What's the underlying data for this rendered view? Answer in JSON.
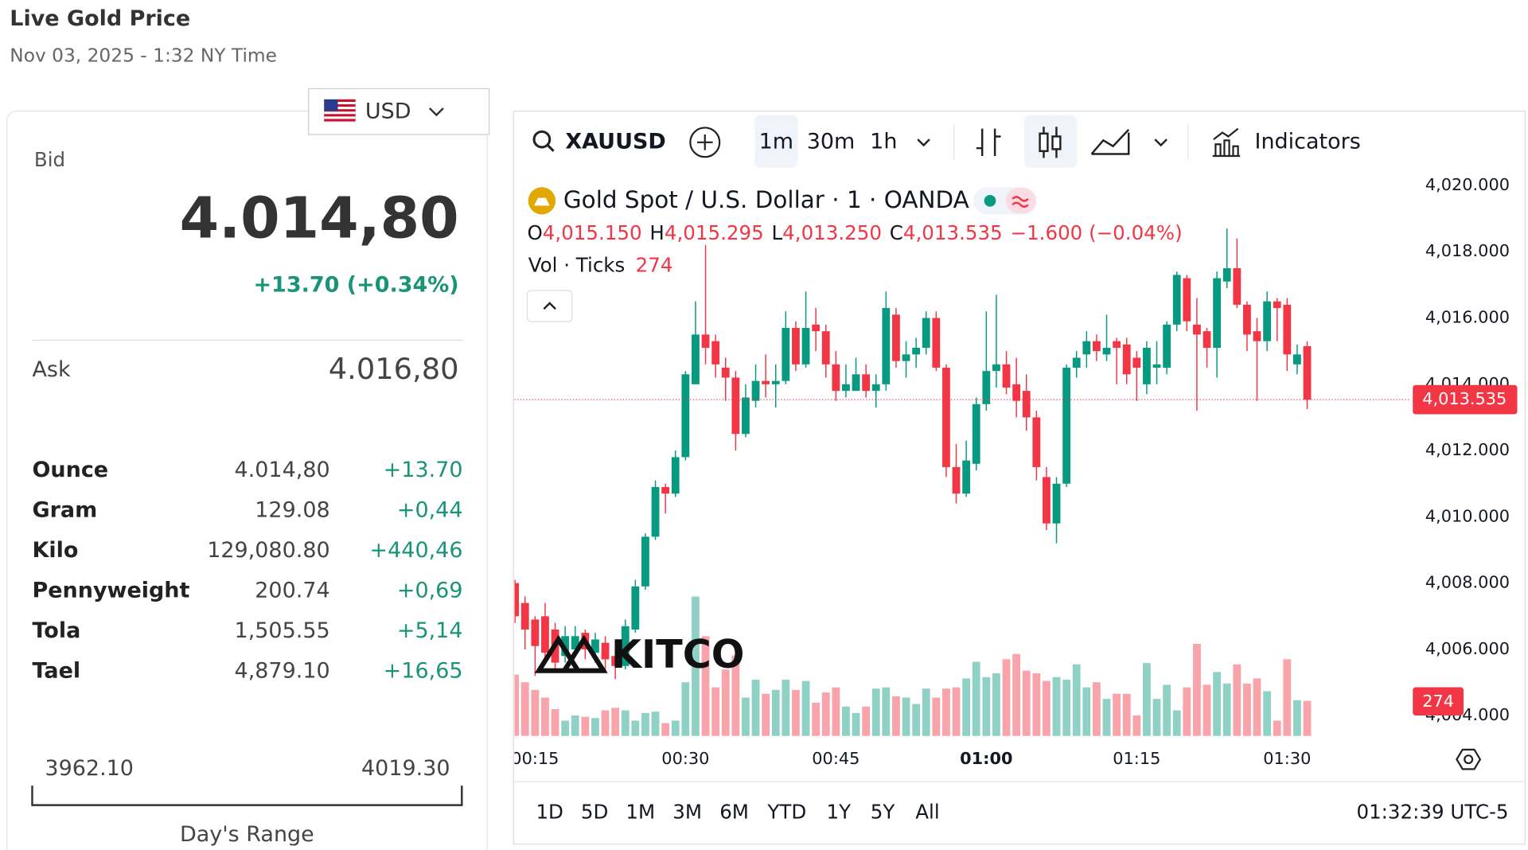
{
  "header": {
    "title": "Live Gold Price",
    "subtitle": "Nov 03, 2025 - 1:32 NY Time"
  },
  "currency": "USD",
  "bid": {
    "label": "Bid",
    "price": "4.014,80",
    "change": "+13.70 (+0.34%)"
  },
  "ask": {
    "label": "Ask",
    "price": "4.016,80"
  },
  "units": [
    {
      "name": "Ounce",
      "price": "4.014,80",
      "change": "+13.70"
    },
    {
      "name": "Gram",
      "price": "129.08",
      "change": "+0,44"
    },
    {
      "name": "Kilo",
      "price": "129,080.80",
      "change": "+440,46"
    },
    {
      "name": "Pennyweight",
      "price": "200.74",
      "change": "+0,69"
    },
    {
      "name": "Tola",
      "price": "1,505.55",
      "change": "+5,14"
    },
    {
      "name": "Tael",
      "price": "4,879.10",
      "change": "+16,65"
    }
  ],
  "range": {
    "low": "3962.10",
    "high": "4019.30",
    "label": "Day's Range"
  },
  "toolbar": {
    "symbol": "XAUUSD",
    "intervals": [
      "1m",
      "30m",
      "1h"
    ],
    "indicators": "Indicators"
  },
  "chart_data": {
    "type": "candlestick",
    "title": "Gold Spot / U.S. Dollar · 1 · OANDA",
    "ohlc": [
      {
        "key": "O",
        "value": "4,015.150"
      },
      {
        "key": "H",
        "value": "4,015.295"
      },
      {
        "key": "L",
        "value": "4,013.250"
      },
      {
        "key": "C",
        "value": "4,013.535"
      }
    ],
    "change": "−1.600 (−0.04%)",
    "volume_title": "Vol · Ticks",
    "volume_label": "274",
    "last_price_label": "4,013.535",
    "watermark": "KITCO",
    "up_color": "#089981",
    "down_color": "#f23645",
    "x": [
      "00:13",
      "00:14",
      "00:15",
      "00:16",
      "00:17",
      "00:18",
      "00:19",
      "00:20",
      "00:21",
      "00:22",
      "00:23",
      "00:24",
      "00:25",
      "00:26",
      "00:27",
      "00:28",
      "00:29",
      "00:30",
      "00:31",
      "00:32",
      "00:33",
      "00:34",
      "00:35",
      "00:36",
      "00:37",
      "00:38",
      "00:39",
      "00:40",
      "00:41",
      "00:42",
      "00:43",
      "00:44",
      "00:45",
      "00:46",
      "00:47",
      "00:48",
      "00:49",
      "00:50",
      "00:51",
      "00:52",
      "00:53",
      "00:54",
      "00:55",
      "00:56",
      "00:57",
      "00:58",
      "00:59",
      "01:00",
      "01:01",
      "01:02",
      "01:03",
      "01:04",
      "01:05",
      "01:06",
      "01:07",
      "01:08",
      "01:09",
      "01:10",
      "01:11",
      "01:12",
      "01:13",
      "01:14",
      "01:15",
      "01:16",
      "01:17",
      "01:18",
      "01:19",
      "01:20",
      "01:21",
      "01:22",
      "01:23",
      "01:24",
      "01:25",
      "01:26",
      "01:27",
      "01:28",
      "01:29",
      "01:30",
      "01:31",
      "01:32"
    ],
    "open": [
      4008.0,
      4007.4,
      4006.9,
      4007.0,
      4006.6,
      4005.8,
      4006.0,
      4006.5,
      4005.9,
      4006.2,
      4005.8,
      4005.5,
      4006.6,
      4007.9,
      4009.4,
      4010.9,
      4010.7,
      4011.8,
      4014.0,
      4015.5,
      4015.3,
      4014.5,
      4014.2,
      4012.5,
      4013.5,
      4014.1,
      4014.0,
      4014.1,
      4015.7,
      4014.6,
      4015.8,
      4015.6,
      4014.6,
      4013.8,
      4013.8,
      4014.3,
      4013.8,
      4014.0,
      4016.1,
      4014.7,
      4014.9,
      4015.1,
      4016.0,
      4014.5,
      4011.5,
      4010.7,
      4011.6,
      4013.4,
      4014.4,
      4014.6,
      4014.0,
      4013.8,
      4013.0,
      4011.2,
      4009.8,
      4011.0,
      4014.5,
      4014.9,
      4015.3,
      4014.9,
      4015.3,
      4015.2,
      4014.8,
      4014.0,
      4014.5,
      4014.5,
      4015.8,
      4017.2,
      4015.8,
      4015.6,
      4015.1,
      4017.1,
      4017.5,
      4016.4,
      4015.6,
      4015.3,
      4016.5,
      4016.4,
      4014.6,
      4015.15
    ],
    "high": [
      4008.1,
      4007.6,
      4007.0,
      4007.4,
      4006.8,
      4006.7,
      4006.7,
      4006.6,
      4006.5,
      4006.4,
      4006.0,
      4006.9,
      4008.1,
      4009.5,
      4011.1,
      4011.0,
      4012.0,
      4014.4,
      4016.5,
      4018.2,
      4015.5,
      4014.8,
      4014.4,
      4014.0,
      4014.6,
      4014.9,
      4014.6,
      4016.2,
      4015.9,
      4016.8,
      4016.3,
      4015.8,
      4015.0,
      4014.6,
      4014.8,
      4014.6,
      4014.3,
      4016.8,
      4016.3,
      4015.3,
      4015.4,
      4016.2,
      4016.2,
      4014.6,
      4012.2,
      4012.3,
      4013.6,
      4016.2,
      4016.7,
      4015.0,
      4014.8,
      4014.3,
      4013.2,
      4011.5,
      4011.2,
      4014.6,
      4015.0,
      4015.6,
      4015.5,
      4016.1,
      4015.4,
      4015.4,
      4015.0,
      4015.3,
      4015.3,
      4015.9,
      4017.4,
      4017.3,
      4016.6,
      4015.7,
      4017.4,
      4018.7,
      4018.4,
      4016.5,
      4016.0,
      4016.8,
      4016.6,
      4016.6,
      4015.2,
      4015.295
    ],
    "low": [
      4006.8,
      4006.0,
      4005.2,
      4005.6,
      4005.3,
      4005.6,
      4005.8,
      4005.7,
      4005.6,
      4005.3,
      4005.1,
      4005.4,
      4006.5,
      4007.8,
      4009.3,
      4010.1,
      4010.6,
      4011.7,
      4014.0,
      4014.6,
      4014.2,
      4013.5,
      4012.0,
      4012.4,
      4013.3,
      4013.6,
      4013.3,
      4014.0,
      4014.4,
      4014.5,
      4015.0,
      4014.2,
      4013.5,
      4013.6,
      4013.8,
      4013.6,
      4013.3,
      4013.8,
      4014.5,
      4014.2,
      4014.5,
      4014.9,
      4014.4,
      4011.2,
      4010.4,
      4010.6,
      4011.4,
      4013.2,
      4013.9,
      4013.7,
      4013.0,
      4012.6,
      4011.1,
      4009.6,
      4009.2,
      4010.9,
      4014.2,
      4014.5,
      4014.7,
      4014.7,
      4014.0,
      4014.0,
      4013.5,
      4013.7,
      4014.0,
      4014.3,
      4015.6,
      4015.6,
      4013.2,
      4014.5,
      4014.2,
      4016.9,
      4016.3,
      4015.0,
      4013.5,
      4015.0,
      4015.3,
      4014.4,
      4014.3,
      4013.25
    ],
    "close": [
      4007.0,
      4006.6,
      4006.1,
      4005.9,
      4005.6,
      4006.4,
      4006.4,
      4006.0,
      4006.3,
      4005.7,
      4005.5,
      4006.7,
      4007.9,
      4009.4,
      4010.9,
      4010.7,
      4011.8,
      4014.3,
      4015.5,
      4015.1,
      4014.6,
      4014.2,
      4012.5,
      4013.6,
      4014.1,
      4014.0,
      4014.1,
      4015.7,
      4014.6,
      4015.7,
      4015.6,
      4014.6,
      4013.8,
      4014.0,
      4014.3,
      4013.8,
      4014.0,
      4016.3,
      4014.7,
      4014.9,
      4015.1,
      4016.0,
      4014.5,
      4011.5,
      4010.7,
      4011.7,
      4013.4,
      4014.4,
      4014.6,
      4013.9,
      4013.5,
      4013.0,
      4011.5,
      4009.8,
      4011.0,
      4014.5,
      4014.8,
      4015.3,
      4015.0,
      4015.1,
      4015.1,
      4014.3,
      4014.5,
      4015.1,
      4014.6,
      4015.8,
      4017.3,
      4015.9,
      4015.5,
      4015.1,
      4017.2,
      4017.5,
      4016.4,
      4015.5,
      4015.3,
      4016.5,
      4016.3,
      4014.9,
      4014.9,
      4013.535
    ],
    "volume": [
      480,
      420,
      360,
      300,
      210,
      120,
      160,
      150,
      140,
      200,
      220,
      200,
      120,
      180,
      190,
      100,
      120,
      420,
      1090,
      780,
      380,
      520,
      630,
      300,
      440,
      330,
      360,
      440,
      360,
      430,
      260,
      340,
      380,
      230,
      180,
      230,
      370,
      380,
      310,
      300,
      250,
      370,
      300,
      370,
      380,
      450,
      580,
      460,
      490,
      600,
      640,
      510,
      490,
      430,
      460,
      440,
      560,
      380,
      420,
      290,
      330,
      330,
      160,
      570,
      290,
      400,
      200,
      380,
      720,
      400,
      500,
      410,
      560,
      410,
      450,
      350,
      120,
      600,
      280,
      274
    ],
    "ylim": [
      4003.3,
      4020.3
    ],
    "yticks": [
      {
        "value": 4020,
        "label": "4,020.000"
      },
      {
        "value": 4018,
        "label": "4,018.000"
      },
      {
        "value": 4016,
        "label": "4,016.000"
      },
      {
        "value": 4014,
        "label": "4,014.000"
      },
      {
        "value": 4012,
        "label": "4,012.000"
      },
      {
        "value": 4010,
        "label": "4,010.000"
      },
      {
        "value": 4008,
        "label": "4,008.000"
      },
      {
        "value": 4006,
        "label": "4,006.000"
      },
      {
        "value": 4004,
        "label": "4,004.000"
      }
    ],
    "xticks": [
      "00:15",
      "00:30",
      "00:45",
      "01:00",
      "01:15",
      "01:30"
    ],
    "grid": false
  },
  "ranges": [
    "1D",
    "5D",
    "1M",
    "3M",
    "6M",
    "YTD",
    "1Y",
    "5Y",
    "All"
  ],
  "clock": "01:32:39 UTC-5"
}
